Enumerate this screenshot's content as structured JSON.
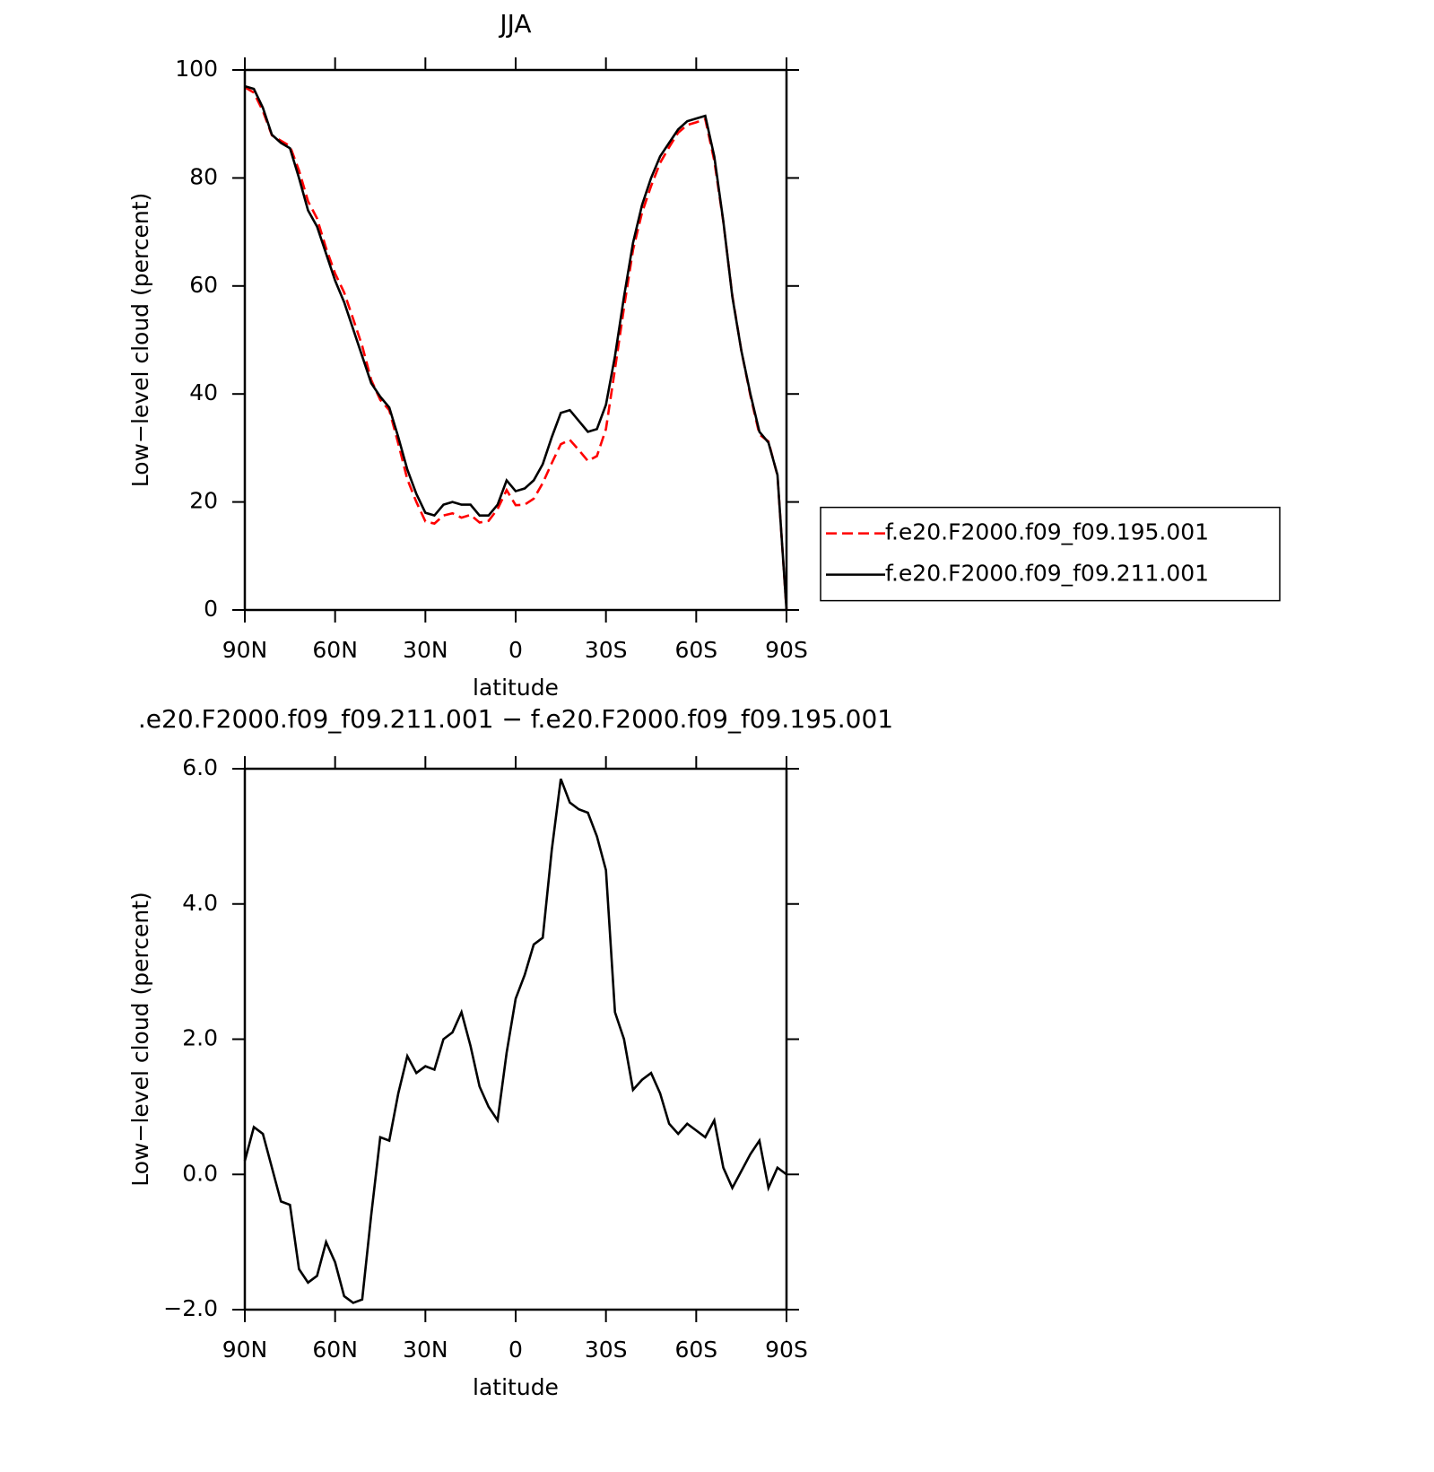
{
  "chart_data": [
    {
      "type": "line",
      "title": "JJA",
      "xlabel": "latitude",
      "ylabel": "Low−level cloud (percent)",
      "x": [
        90,
        87,
        84,
        81,
        78,
        75,
        72,
        69,
        66,
        63,
        60,
        57,
        54,
        51,
        48,
        45,
        42,
        39,
        36,
        33,
        30,
        27,
        24,
        21,
        18,
        15,
        12,
        9,
        6,
        3,
        0,
        -3,
        -6,
        -9,
        -12,
        -15,
        -18,
        -21,
        -24,
        -27,
        -30,
        -33,
        -36,
        -39,
        -42,
        -45,
        -48,
        -51,
        -54,
        -57,
        -60,
        -63,
        -66,
        -69,
        -72,
        -75,
        -78,
        -81,
        -84,
        -87,
        -90
      ],
      "series": [
        {
          "name": "f.e20.F2000.f09_f09.195.001",
          "color": "#ff0000",
          "line_style": "dashed",
          "values": [
            96.8,
            95.8,
            92.4,
            87.9,
            86.9,
            85.9,
            81.4,
            75.7,
            72.5,
            67,
            62.3,
            58.8,
            53.9,
            48.9,
            42.6,
            38.9,
            37,
            30.8,
            24.2,
            20,
            16.4,
            16,
            17.5,
            17.9,
            17.1,
            17.6,
            16.2,
            16.5,
            18.7,
            22.2,
            19.4,
            19.5,
            20.6,
            23.5,
            27.2,
            30.7,
            31.5,
            29.6,
            27.6,
            28.5,
            33.5,
            44.6,
            56,
            66.7,
            73.6,
            78.5,
            82.8,
            85.7,
            88.4,
            89.8,
            90.3,
            90.9,
            83.2,
            71.9,
            58.2,
            48,
            39.7,
            32.5,
            31.2,
            24.9,
            0
          ]
        },
        {
          "name": "f.e20.F2000.f09_f09.211.001",
          "color": "#000000",
          "line_style": "solid",
          "values": [
            97,
            96.5,
            93,
            88,
            86.5,
            85.5,
            80,
            74,
            71,
            66,
            61,
            57,
            52,
            47,
            42,
            39.5,
            37.5,
            32,
            26,
            21.5,
            18,
            17.5,
            19.5,
            20,
            19.5,
            19.5,
            17.5,
            17.5,
            19.5,
            24,
            22,
            22.5,
            24,
            27,
            32,
            36.5,
            37,
            35,
            33,
            33.5,
            38,
            47,
            58,
            68,
            75,
            80,
            84,
            86.5,
            89,
            90.5,
            91,
            91.5,
            84,
            72,
            58,
            48,
            40,
            33,
            31,
            25,
            0
          ]
        }
      ],
      "xlim": [
        90,
        -90
      ],
      "xticks": [
        {
          "value": 90,
          "label": "90N"
        },
        {
          "value": 60,
          "label": "60N"
        },
        {
          "value": 30,
          "label": "30N"
        },
        0,
        {
          "value": -30,
          "label": "30S"
        },
        {
          "value": -60,
          "label": "60S"
        },
        {
          "value": -90,
          "label": "90S"
        }
      ],
      "ylim": [
        0,
        100
      ],
      "yticks": [
        0,
        20,
        40,
        60,
        80,
        100
      ],
      "legend": "right"
    },
    {
      "type": "line",
      "title": ".e20.F2000.f09_f09.211.001 − f.e20.F2000.f09_f09.195.001",
      "xlabel": "latitude",
      "ylabel": "Low−level cloud (percent)",
      "x": [
        90,
        87,
        84,
        81,
        78,
        75,
        72,
        69,
        66,
        63,
        60,
        57,
        54,
        51,
        48,
        45,
        42,
        39,
        36,
        33,
        30,
        27,
        24,
        21,
        18,
        15,
        12,
        9,
        6,
        3,
        0,
        -3,
        -6,
        -9,
        -12,
        -15,
        -18,
        -21,
        -24,
        -27,
        -30,
        -33,
        -36,
        -39,
        -42,
        -45,
        -48,
        -51,
        -54,
        -57,
        -60,
        -63,
        -66,
        -69,
        -72,
        -75,
        -78,
        -81,
        -84,
        -87,
        -90
      ],
      "series": [
        {
          "color": "#000000",
          "line_style": "solid",
          "values": [
            0.2,
            0.7,
            0.6,
            0.1,
            -0.4,
            -0.45,
            -1.4,
            -1.6,
            -1.5,
            -1.0,
            -1.3,
            -1.8,
            -1.9,
            -1.85,
            -0.6,
            0.55,
            0.5,
            1.2,
            1.75,
            1.5,
            1.6,
            1.55,
            2.0,
            2.1,
            2.4,
            1.9,
            1.3,
            1.0,
            0.8,
            1.8,
            2.6,
            2.95,
            3.4,
            3.5,
            4.8,
            5.85,
            5.5,
            5.4,
            5.35,
            5.0,
            4.5,
            2.4,
            2.0,
            1.25,
            1.4,
            1.5,
            1.2,
            0.75,
            0.6,
            0.75,
            0.65,
            0.55,
            0.8,
            0.1,
            -0.2,
            0.05,
            0.3,
            0.5,
            -0.2,
            0.1,
            0.0
          ]
        }
      ],
      "xlim": [
        90,
        -90
      ],
      "xticks": [
        {
          "value": 90,
          "label": "90N"
        },
        {
          "value": 60,
          "label": "60N"
        },
        {
          "value": 30,
          "label": "30N"
        },
        0,
        {
          "value": -30,
          "label": "30S"
        },
        {
          "value": -60,
          "label": "60S"
        },
        {
          "value": -90,
          "label": "90S"
        }
      ],
      "ylim": [
        -2,
        6
      ],
      "yticks": [
        {
          "value": -2,
          "label": "−2.0"
        },
        {
          "value": 0,
          "label": "0.0"
        },
        {
          "value": 2,
          "label": "2.0"
        },
        {
          "value": 4,
          "label": "4.0"
        },
        {
          "value": 6,
          "label": "6.0"
        }
      ]
    }
  ]
}
